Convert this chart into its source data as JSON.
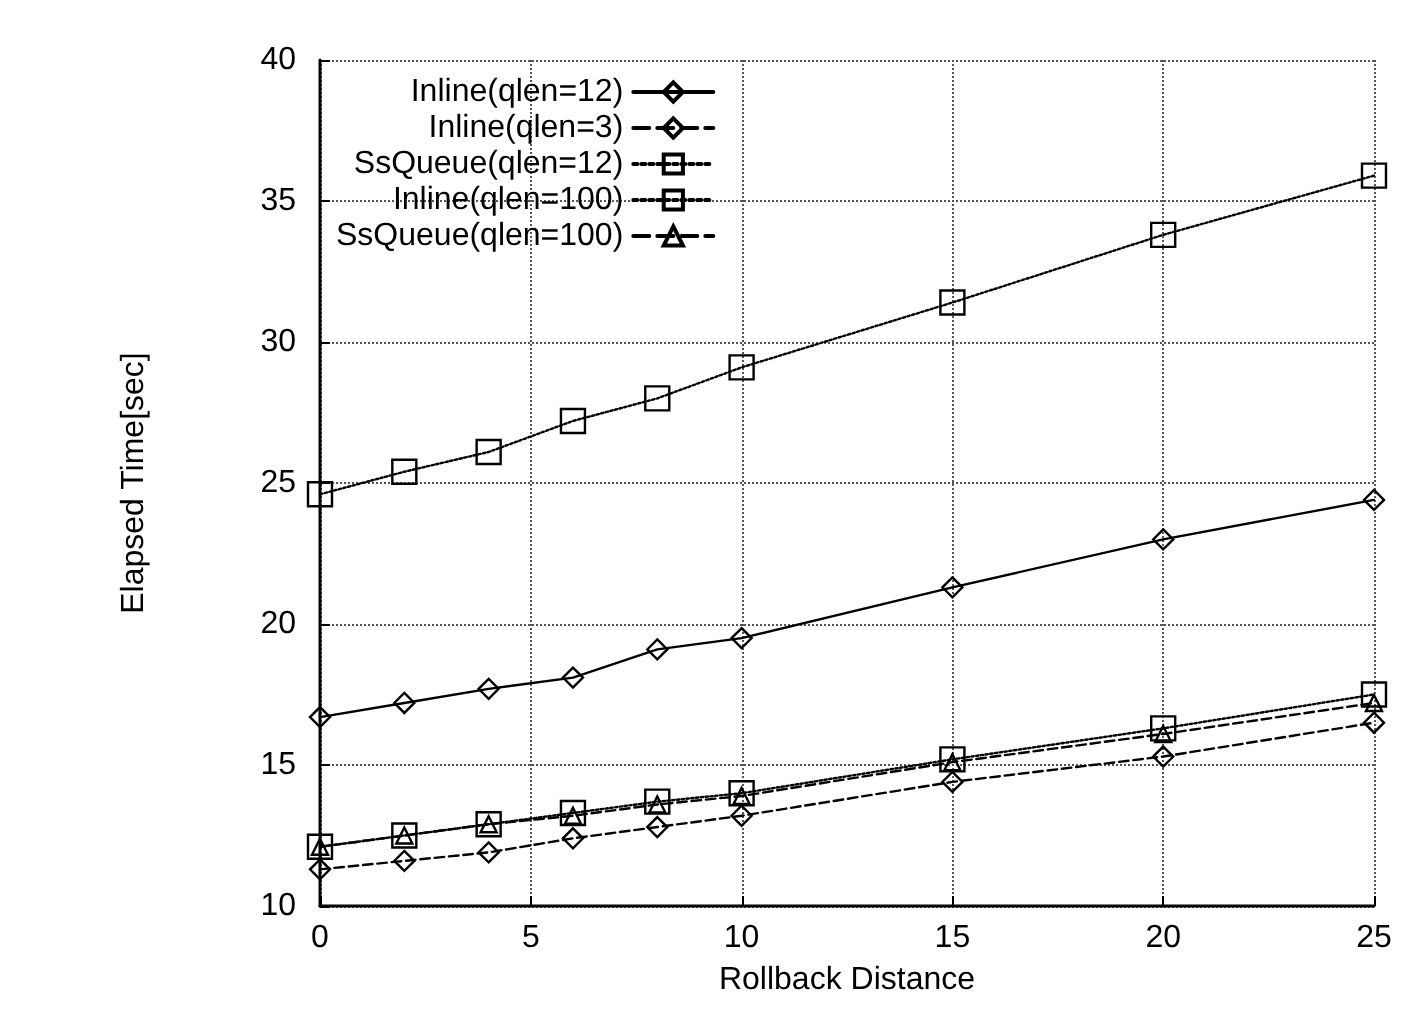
{
  "chart_data": {
    "type": "line",
    "xlabel": "Rollback Distance",
    "ylabel": "Elapsed Time[sec]",
    "x": [
      0,
      2,
      4,
      6,
      8,
      10,
      15,
      20,
      25
    ],
    "xlim": [
      0,
      25
    ],
    "xticks": [
      0,
      5,
      10,
      15,
      20,
      25
    ],
    "ylim": [
      10,
      40
    ],
    "yticks": [
      10,
      15,
      20,
      25,
      30,
      35,
      40
    ],
    "grid": true,
    "legend": "top left",
    "series": [
      {
        "name": "Inline(qlen=12)",
        "color": "#000000",
        "marker": "diamond",
        "line_style": "solid",
        "values": [
          16.7,
          17.2,
          17.7,
          18.1,
          19.1,
          19.5,
          21.3,
          23.0,
          24.4
        ]
      },
      {
        "name": "Inline(qlen=3)",
        "color": "#000000",
        "marker": "diamond",
        "line_style": "dashed",
        "values": [
          11.3,
          11.6,
          11.9,
          12.4,
          12.8,
          13.2,
          14.4,
          15.3,
          16.5
        ]
      },
      {
        "name": "SsQueue(qlen=12)",
        "color": "#000000",
        "marker": "square",
        "line_style": "dotted",
        "values": [
          12.1,
          12.5,
          12.9,
          13.3,
          13.7,
          14.0,
          15.2,
          16.3,
          17.5
        ]
      },
      {
        "name": "Inline(qlen=100)",
        "color": "#000000",
        "marker": "square",
        "line_style": "dotted",
        "values": [
          24.6,
          25.4,
          26.1,
          27.2,
          28.0,
          29.1,
          31.4,
          33.8,
          35.9
        ]
      },
      {
        "name": "SsQueue(qlen=100)",
        "color": "#000000",
        "marker": "triangle",
        "line_style": "dashed",
        "values": [
          12.1,
          12.5,
          12.9,
          13.2,
          13.6,
          13.9,
          15.1,
          16.1,
          17.2
        ]
      }
    ]
  }
}
